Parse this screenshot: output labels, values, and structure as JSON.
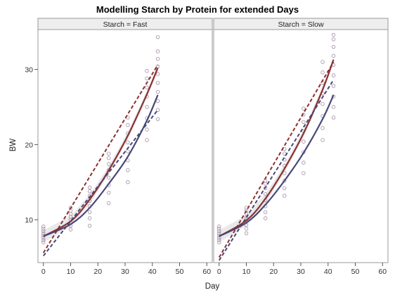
{
  "chart_data": {
    "type": "scatter",
    "title": "Modelling Starch by Protein for extended Days",
    "xlabel": "Day",
    "ylabel": "BW",
    "xlim": [
      -2,
      62
    ],
    "ylim": [
      4.3,
      35.3
    ],
    "xticks": [
      0,
      10,
      20,
      30,
      40,
      50,
      60
    ],
    "yticks": [
      10,
      20,
      30
    ],
    "grid": false,
    "colors": {
      "points": "#a08aa0",
      "series_red": "#8b3030",
      "series_blue": "#474878",
      "band": "#cfcfcf",
      "strip_fill": "#eeeeee",
      "frame": "#9a9a9a"
    },
    "panels": [
      {
        "strip_label": "Starch = Fast",
        "points_by_day": [
          {
            "x": 0,
            "y": [
              7.0,
              7.3,
              7.6,
              7.9,
              8.2,
              8.5,
              8.8,
              9.1
            ]
          },
          {
            "x": 10,
            "y": [
              8.7,
              9.2,
              9.6,
              10.0,
              10.4,
              10.8,
              11.2,
              11.6
            ]
          },
          {
            "x": 17,
            "y": [
              9.2,
              10.2,
              11.0,
              11.8,
              12.5,
              13.2,
              13.8,
              14.3
            ]
          },
          {
            "x": 24,
            "y": [
              12.2,
              13.6,
              14.6,
              15.6,
              16.6,
              17.4,
              18.2,
              18.8
            ]
          },
          {
            "x": 31,
            "y": [
              15.0,
              16.6,
              17.9,
              19.1,
              20.3,
              21.5,
              22.6,
              23.6
            ]
          },
          {
            "x": 38,
            "y": [
              20.6,
              22.0,
              23.5,
              25.0,
              26.4,
              27.6,
              28.8,
              29.8
            ]
          },
          {
            "x": 42,
            "y": [
              23.4,
              24.6,
              25.8,
              27.0,
              28.2,
              29.4,
              30.4,
              31.4,
              32.4,
              34.3
            ]
          }
        ],
        "series": [
          {
            "name": "",
            "style": "solid",
            "color": "red",
            "x": [
              0,
              10,
              17,
              24,
              31,
              38,
              42
            ],
            "y": [
              7.8,
              9.8,
              12.7,
              16.6,
              21.2,
              26.7,
              30.2
            ]
          },
          {
            "name": "",
            "style": "solid",
            "color": "blue",
            "x": [
              0,
              10,
              17,
              24,
              31,
              38,
              42
            ],
            "y": [
              7.8,
              9.4,
              11.6,
              14.8,
              18.4,
              23.2,
              26.6
            ]
          },
          {
            "name": "",
            "style": "dashed",
            "color": "red",
            "x": [
              0,
              42
            ],
            "y": [
              5.6,
              30.6
            ]
          },
          {
            "name": "",
            "style": "dashed",
            "color": "blue",
            "x": [
              0,
              42
            ],
            "y": [
              5.2,
              24.6
            ]
          }
        ]
      },
      {
        "strip_label": "Starch = Slow",
        "points_by_day": [
          {
            "x": 0,
            "y": [
              7.0,
              7.3,
              7.6,
              7.9,
              8.2,
              8.5,
              8.8,
              9.1
            ]
          },
          {
            "x": 10,
            "y": [
              8.2,
              8.8,
              9.3,
              9.8,
              10.3,
              10.8,
              11.2,
              11.6
            ]
          },
          {
            "x": 17,
            "y": [
              10.2,
              11.0,
              11.8,
              12.6,
              13.4,
              14.2,
              14.8,
              15.2
            ]
          },
          {
            "x": 24,
            "y": [
              13.2,
              14.2,
              15.2,
              16.2,
              17.2,
              18.0,
              18.8,
              19.4
            ]
          },
          {
            "x": 31,
            "y": [
              16.2,
              17.6,
              19.0,
              20.4,
              21.8,
              23.0,
              24.0,
              24.8
            ]
          },
          {
            "x": 38,
            "y": [
              20.6,
              22.2,
              23.8,
              25.4,
              26.8,
              28.2,
              29.6,
              31.0
            ]
          },
          {
            "x": 42,
            "y": [
              23.6,
              25.0,
              26.4,
              27.8,
              29.2,
              30.6,
              31.8,
              33.0,
              34.0,
              34.6
            ]
          }
        ],
        "series": [
          {
            "name": "",
            "style": "solid",
            "color": "red",
            "x": [
              0,
              10,
              17,
              24,
              31,
              38,
              42
            ],
            "y": [
              7.8,
              9.9,
              12.8,
              16.8,
              21.5,
              27.3,
              31.3
            ]
          },
          {
            "name": "",
            "style": "solid",
            "color": "blue",
            "x": [
              0,
              10,
              17,
              24,
              31,
              38,
              42
            ],
            "y": [
              7.8,
              9.6,
              12.0,
              15.2,
              18.9,
              23.4,
              26.6
            ]
          },
          {
            "name": "",
            "style": "dashed",
            "color": "red",
            "x": [
              0,
              42
            ],
            "y": [
              5.0,
              31.0
            ]
          },
          {
            "name": "",
            "style": "dashed",
            "color": "blue",
            "x": [
              0,
              42
            ],
            "y": [
              4.6,
              28.6
            ]
          }
        ]
      }
    ]
  }
}
